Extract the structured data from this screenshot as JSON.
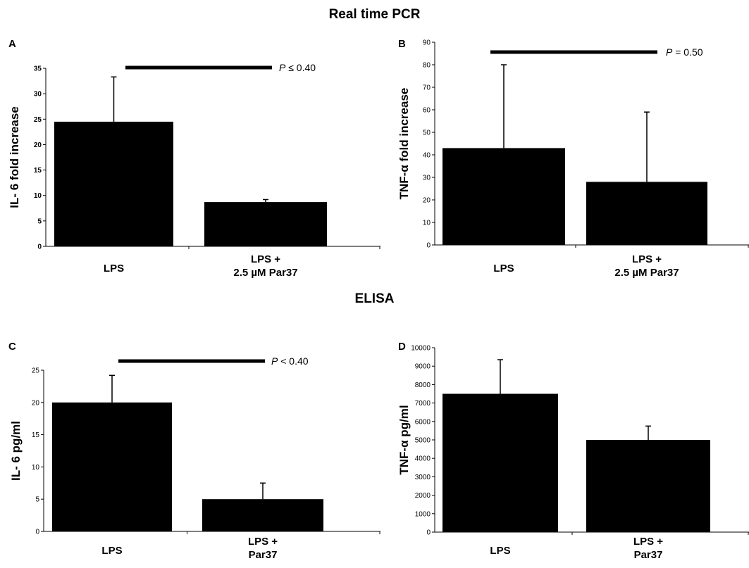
{
  "titles": {
    "pcr": "Real time PCR",
    "elisa": "ELISA"
  },
  "chart_data": [
    {
      "panel": "A",
      "type": "bar",
      "categories": [
        [
          "LPS"
        ],
        [
          "LPS +",
          "2.5 µM Par37"
        ]
      ],
      "values": [
        24.5,
        8.7
      ],
      "errors": [
        8.8,
        0.5
      ],
      "ylabel": "IL- 6 fold increase",
      "ylim": [
        0,
        35
      ],
      "yticks": [
        0,
        5,
        10,
        15,
        20,
        25,
        30,
        35
      ],
      "significance": {
        "italic": "P",
        "text": " ≤ 0.40"
      }
    },
    {
      "panel": "B",
      "type": "bar",
      "categories": [
        [
          "LPS"
        ],
        [
          "LPS +",
          "2.5 µM Par37"
        ]
      ],
      "values": [
        43,
        28
      ],
      "errors": [
        37,
        31
      ],
      "ylabel": "TNF-α fold increase",
      "ylim": [
        0,
        90
      ],
      "yticks": [
        0,
        10,
        20,
        30,
        40,
        50,
        60,
        70,
        80,
        90
      ],
      "significance": {
        "italic": "P",
        "text": " = 0.50"
      }
    },
    {
      "panel": "C",
      "type": "bar",
      "categories": [
        [
          "LPS"
        ],
        [
          "LPS +",
          "Par37"
        ]
      ],
      "values": [
        20,
        5
      ],
      "errors": [
        4.2,
        2.5
      ],
      "ylabel": "IL- 6 pg/ml",
      "ylim": [
        0,
        25
      ],
      "yticks": [
        0,
        5,
        10,
        15,
        20,
        25
      ],
      "significance": {
        "italic": "P",
        "text": " < 0.40"
      }
    },
    {
      "panel": "D",
      "type": "bar",
      "categories": [
        [
          "LPS"
        ],
        [
          "LPS +",
          "Par37"
        ]
      ],
      "values": [
        7500,
        5000
      ],
      "errors": [
        1850,
        750
      ],
      "ylabel": "TNF-α pg/ml",
      "ylim": [
        0,
        10000
      ],
      "yticks": [
        0,
        1000,
        2000,
        3000,
        4000,
        5000,
        6000,
        7000,
        8000,
        9000,
        10000
      ],
      "significance": null
    }
  ]
}
